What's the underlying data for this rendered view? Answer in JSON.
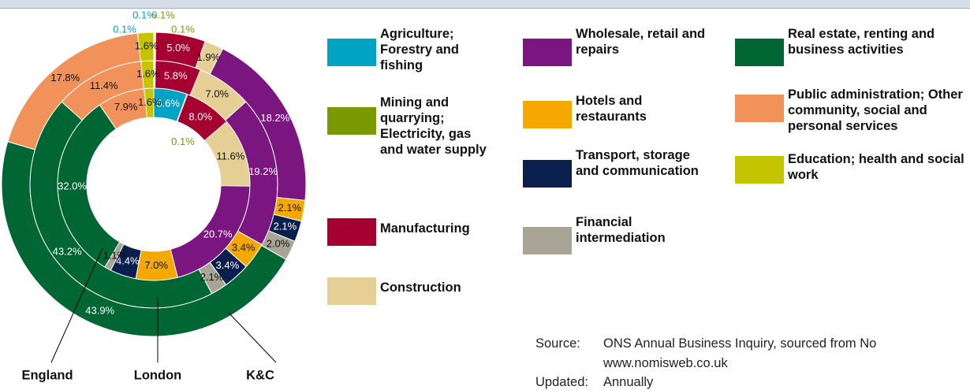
{
  "chart_data": {
    "type": "donut",
    "categories": [
      "Agriculture; Forestry and fishing",
      "Mining and quarrying; Electricity, gas and water supply",
      "Manufacturing",
      "Construction",
      "Wholesale, retail and repairs",
      "Hotels and restaurants",
      "Transport, storage and communication",
      "Financial intermediation",
      "Real estate, renting and business activities",
      "Public administration; Other community, social and personal services",
      "Education; health and social work"
    ],
    "colors": [
      "#00a3c4",
      "#7a9a01",
      "#a50030",
      "#e6cf95",
      "#7b1580",
      "#f5a800",
      "#0b1f4f",
      "#a8a596",
      "#006633",
      "#f0925a",
      "#c4c400"
    ],
    "series": [
      {
        "name": "England",
        "values": [
          5.6,
          0.1,
          8.0,
          11.6,
          20.7,
          7.0,
          4.4,
          1.1,
          32.0,
          7.9,
          1.6
        ],
        "value_labels": [
          "5.6%",
          "0.1%",
          "8.0%",
          "11.6%",
          "20.7%",
          "7.0%",
          "4.4%",
          "1.1%",
          "32.0%",
          "7.9%",
          "1.6%"
        ]
      },
      {
        "name": "London",
        "values": [
          0.1,
          0.1,
          5.8,
          7.0,
          19.2,
          3.4,
          3.4,
          2.1,
          43.2,
          11.4,
          1.6
        ],
        "value_labels": [
          "0.1%",
          "0.1%",
          "5.8%",
          "7.0%",
          "19.2%",
          "3.4%",
          "3.4%",
          "2.1%",
          "43.2%",
          "11.4%",
          "1.6%"
        ]
      },
      {
        "name": "K&C",
        "values": [
          0.1,
          0.1,
          5.0,
          1.9,
          18.2,
          2.1,
          2.1,
          2.0,
          43.9,
          17.8,
          1.6
        ],
        "value_labels": [
          "0.1%",
          "0.1%",
          "5.0%",
          "1.9%",
          "18.2%",
          "2.1%",
          "2.1%",
          "2.0%",
          "43.9%",
          "17.8%",
          "1.6%"
        ]
      }
    ]
  },
  "source": {
    "label": "Source:",
    "text": "ONS Annual Business Inquiry, sourced from No",
    "url": "www.nomisweb.co.uk"
  },
  "updated": {
    "label": "Updated:",
    "text": "Annually"
  }
}
